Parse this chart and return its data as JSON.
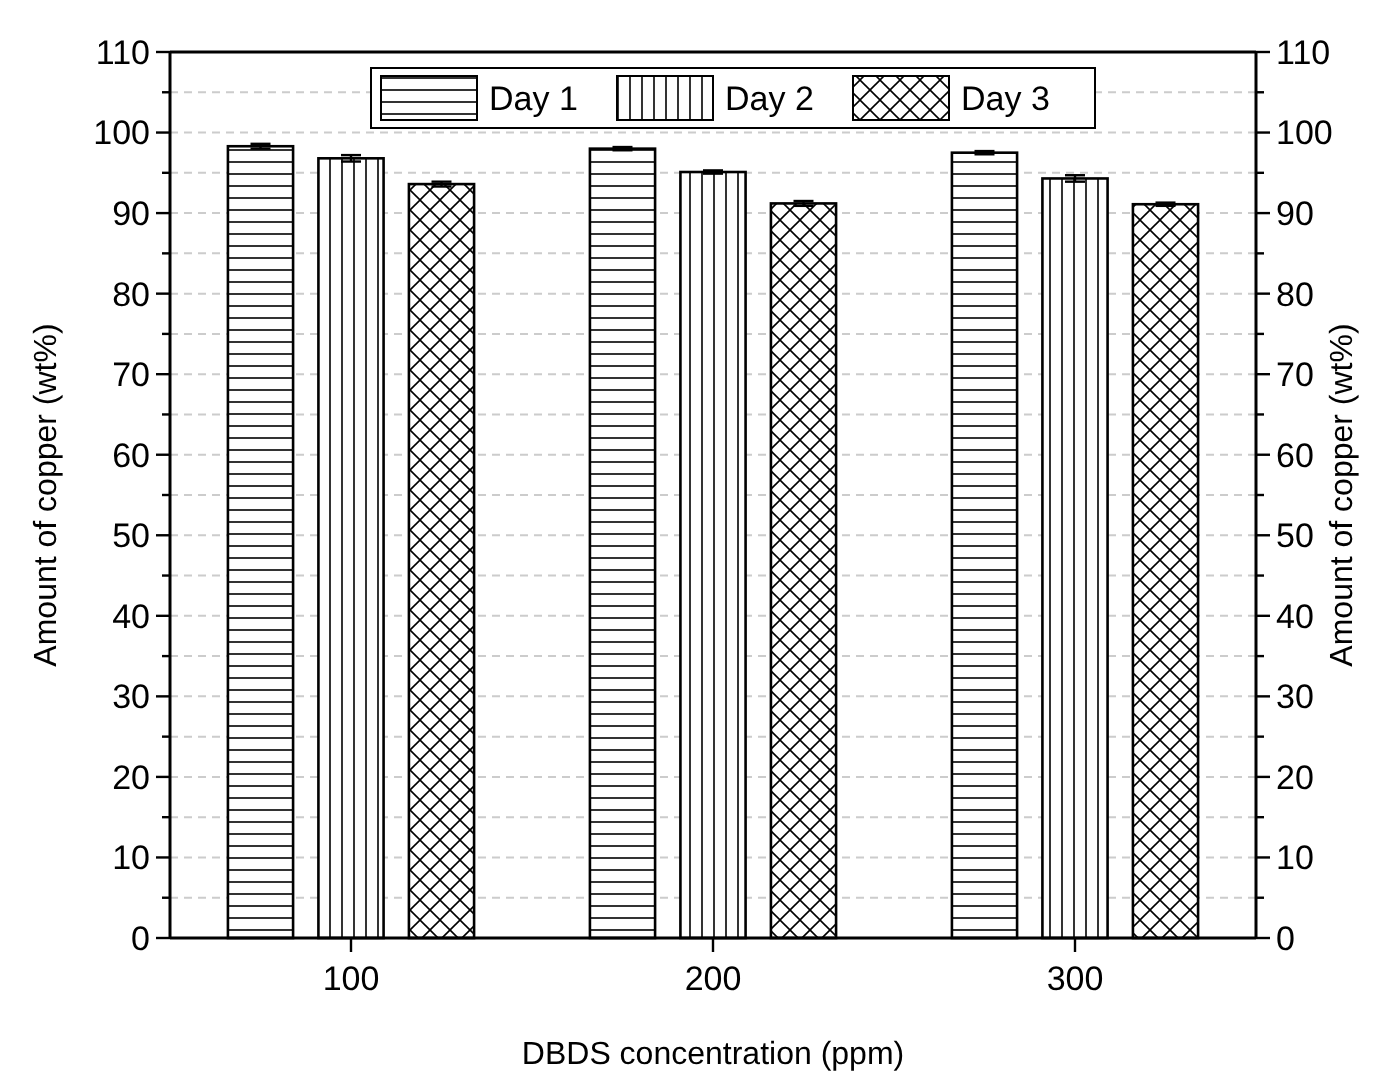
{
  "chart_data": {
    "type": "bar",
    "xlabel": "DBDS concentration (ppm)",
    "ylabel": "Amount of copper (wt%)",
    "y2label": "Amount of copper (wt%)",
    "categories": [
      "100",
      "200",
      "300"
    ],
    "series": [
      {
        "name": "Day 1",
        "color": "#000000",
        "values": [
          98.3,
          98.0,
          97.5
        ],
        "errors": [
          0.3,
          0.2,
          0.2
        ]
      },
      {
        "name": "Day 2",
        "color": "#000000",
        "values": [
          96.8,
          95.1,
          94.3
        ],
        "errors": [
          0.4,
          0.2,
          0.4
        ]
      },
      {
        "name": "Day 3",
        "color": "#000000",
        "values": [
          93.6,
          91.2,
          91.1
        ],
        "errors": [
          0.3,
          0.3,
          0.2
        ]
      }
    ],
    "ylim": [
      0,
      110
    ],
    "yticks": [
      0,
      {
        "value": 5,
        "label": null
      },
      10,
      {
        "value": 15,
        "label": null
      },
      20,
      {
        "value": 25,
        "label": null
      },
      30,
      {
        "value": 35,
        "label": null
      },
      40,
      {
        "value": 45,
        "label": null
      },
      50,
      {
        "value": 55,
        "label": null
      },
      60,
      {
        "value": 65,
        "label": null
      },
      70,
      {
        "value": 75,
        "label": null
      },
      80,
      {
        "value": 85,
        "label": null
      },
      90,
      {
        "value": 95,
        "label": null
      },
      100,
      {
        "value": 105,
        "label": null
      },
      110
    ],
    "y2lim": [
      0,
      110
    ],
    "y2ticks": [
      0,
      {
        "value": 5,
        "label": null
      },
      10,
      {
        "value": 15,
        "label": null
      },
      20,
      {
        "value": 25,
        "label": null
      },
      30,
      {
        "value": 35,
        "label": null
      },
      40,
      {
        "value": 45,
        "label": null
      },
      50,
      {
        "value": 55,
        "label": null
      },
      60,
      {
        "value": 65,
        "label": null
      },
      70,
      {
        "value": 75,
        "label": null
      },
      80,
      {
        "value": 85,
        "label": null
      },
      90,
      {
        "value": 95,
        "label": null
      },
      100,
      {
        "value": 105,
        "label": null
      },
      110
    ],
    "grid": "y",
    "legend": "top"
  }
}
